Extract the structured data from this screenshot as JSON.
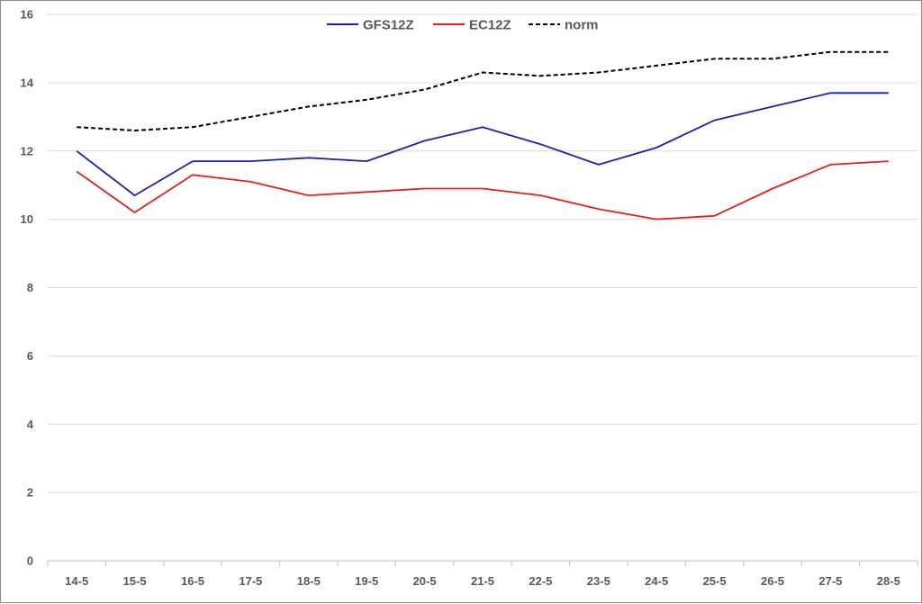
{
  "chart_data": {
    "type": "line",
    "title": "",
    "xlabel": "",
    "ylabel": "",
    "categories": [
      "14-5",
      "15-5",
      "16-5",
      "17-5",
      "18-5",
      "19-5",
      "20-5",
      "21-5",
      "22-5",
      "23-5",
      "24-5",
      "25-5",
      "26-5",
      "27-5",
      "28-5"
    ],
    "ylim": [
      0,
      16
    ],
    "yticks": [
      0,
      2,
      4,
      6,
      8,
      10,
      12,
      14,
      16
    ],
    "grid": true,
    "legend_position": "top-center",
    "series": [
      {
        "name": "GFS12Z",
        "color": "#1f1fb4",
        "dash": "solid",
        "values": [
          12.0,
          10.7,
          11.7,
          11.7,
          11.8,
          11.7,
          12.3,
          12.7,
          12.2,
          11.6,
          12.1,
          12.9,
          13.3,
          13.7,
          13.7
        ]
      },
      {
        "name": "EC12Z",
        "color": "#e02020",
        "dash": "solid",
        "values": [
          11.4,
          10.2,
          11.3,
          11.1,
          10.7,
          10.8,
          10.9,
          10.9,
          10.7,
          10.3,
          10.0,
          10.1,
          10.9,
          11.6,
          11.7
        ]
      },
      {
        "name": "norm",
        "color": "#000000",
        "dash": "dashed",
        "values": [
          12.7,
          12.6,
          12.7,
          13.0,
          13.3,
          13.5,
          13.8,
          14.3,
          14.2,
          14.3,
          14.5,
          14.7,
          14.7,
          14.9,
          14.9
        ]
      }
    ]
  }
}
